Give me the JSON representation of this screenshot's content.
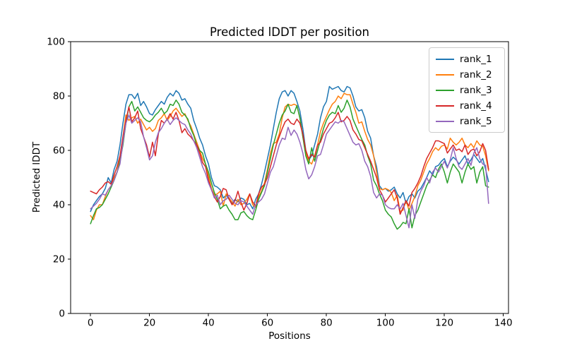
{
  "chart_data": {
    "type": "line",
    "title": "Predicted lDDT per position",
    "xlabel": "Positions",
    "ylabel": "Predicted lDDT",
    "xlim": [
      -6.75,
      141.75
    ],
    "ylim": [
      0,
      100
    ],
    "xticks": [
      0,
      20,
      40,
      60,
      80,
      100,
      120,
      140
    ],
    "yticks": [
      0,
      20,
      40,
      60,
      80,
      100
    ],
    "grid": false,
    "background": "#ffffff",
    "legend_position": "upper right",
    "x_start": 0,
    "x_step": 1,
    "series": [
      {
        "name": "rank_1",
        "color": "#1f77b4",
        "values": [
          37.5,
          40,
          41.5,
          43,
          44,
          46,
          50,
          48,
          53,
          56,
          62,
          70,
          77,
          80.5,
          80.5,
          79,
          81,
          76.5,
          78,
          76,
          73.5,
          73,
          75,
          76.5,
          78,
          77,
          79.5,
          81,
          80,
          82,
          81,
          78.5,
          79,
          77,
          75.5,
          71,
          68,
          64.5,
          62,
          58,
          55,
          50,
          47,
          46.5,
          45.5,
          42.5,
          43.5,
          42,
          40.5,
          42,
          41,
          42.5,
          42,
          40,
          40.5,
          38.5,
          42,
          44,
          47.5,
          52,
          57,
          62,
          68,
          74,
          79,
          81.5,
          82,
          80,
          82,
          81,
          78,
          74.5,
          68,
          60,
          56.5,
          58,
          62,
          66,
          72,
          76,
          78,
          83.5,
          82.5,
          83,
          83.5,
          82,
          81.5,
          83.5,
          83,
          80,
          76,
          74.5,
          75,
          72,
          67,
          64.5,
          58,
          54,
          47,
          45.5,
          46,
          45,
          45.5,
          46.5,
          44,
          42.5,
          44.5,
          40.5,
          43,
          44,
          42.5,
          45,
          46,
          48,
          50,
          52.5,
          51,
          54,
          54.5,
          56,
          57,
          54,
          56,
          57.5,
          56.5,
          55,
          56.5,
          58,
          55,
          56.5,
          58.5,
          57,
          55.5,
          57,
          53,
          48.5
        ]
      },
      {
        "name": "rank_2",
        "color": "#ff7f0e",
        "values": [
          36,
          34.5,
          38,
          40,
          40,
          43,
          45.5,
          47,
          50,
          52,
          57,
          65,
          73,
          71,
          72,
          72.5,
          70,
          71.5,
          69.5,
          67.5,
          68.5,
          67,
          68,
          71,
          72,
          73.5,
          71,
          72.5,
          74.5,
          75.5,
          74,
          72.5,
          73.5,
          71,
          69,
          66,
          63,
          60,
          57,
          55,
          50.5,
          46,
          43.5,
          44,
          45,
          39.5,
          44,
          42.5,
          41,
          39.5,
          42,
          40,
          40.5,
          42,
          44,
          40,
          39,
          43,
          45,
          48,
          53,
          59,
          62.5,
          63,
          66,
          72,
          76,
          77,
          76.5,
          77,
          76.5,
          72,
          65,
          59,
          56,
          55,
          58,
          62,
          67,
          70,
          72.5,
          75,
          77,
          78,
          80,
          79,
          81,
          80.5,
          80.5,
          77,
          74,
          70,
          70.5,
          67,
          64,
          62,
          58,
          52,
          46,
          45.5,
          46,
          45.5,
          44.5,
          41.5,
          43.5,
          37.5,
          38,
          41.5,
          38,
          40.5,
          43,
          47,
          49,
          52,
          55,
          57,
          59.5,
          61,
          60,
          61.5,
          62,
          60.5,
          64.5,
          63,
          62,
          63,
          64.5,
          62,
          61,
          62.5,
          61,
          63.5,
          62,
          61.5,
          58,
          52.5
        ]
      },
      {
        "name": "rank_3",
        "color": "#2ca02c",
        "values": [
          33,
          36,
          38.5,
          39,
          40,
          42,
          44,
          46.5,
          49,
          52,
          56,
          62,
          70,
          76,
          78,
          74.5,
          76,
          74,
          72,
          71,
          70.5,
          71.5,
          73,
          74,
          75.5,
          73.5,
          74.5,
          77,
          76.5,
          78.5,
          77,
          74,
          73,
          71.5,
          68,
          65.5,
          62,
          60,
          59,
          55,
          52,
          48,
          44.5,
          42,
          38.5,
          39.5,
          40,
          38,
          36.5,
          34.5,
          34.5,
          37,
          37.5,
          36,
          35,
          34.5,
          38,
          42,
          44.5,
          47,
          52,
          57,
          62,
          66,
          70,
          73,
          74.5,
          77,
          74,
          73.5,
          76.5,
          72,
          65,
          58,
          55,
          61,
          56,
          60,
          64,
          68,
          71,
          73,
          74,
          73.5,
          76.5,
          74,
          75.5,
          78.5,
          76,
          71.5,
          69,
          66.5,
          64,
          62,
          58,
          55,
          49,
          47,
          44,
          41.5,
          38,
          36.5,
          35.5,
          33,
          31,
          32,
          33.5,
          33,
          38.5,
          31.5,
          36,
          38,
          41,
          44,
          47,
          49,
          51,
          50,
          53,
          55,
          52,
          48,
          52,
          55,
          53.5,
          52,
          48,
          52,
          55,
          53,
          54,
          48,
          52,
          54,
          47,
          46.5
        ]
      },
      {
        "name": "rank_4",
        "color": "#d62728",
        "values": [
          45,
          44.5,
          44,
          45.5,
          46.5,
          48,
          48.5,
          47.5,
          51,
          54,
          58,
          65,
          71,
          76,
          70.5,
          72,
          74.5,
          68,
          65,
          62,
          57.5,
          63,
          58,
          66,
          71,
          70,
          71.5,
          73.5,
          71.5,
          74,
          71,
          66.5,
          68,
          66,
          65,
          63.5,
          62,
          59,
          55.5,
          54,
          49,
          45.5,
          43,
          41,
          43,
          46,
          45.5,
          42,
          40,
          41.5,
          45,
          41,
          38,
          40.5,
          44,
          41,
          39.5,
          44,
          46.5,
          47.5,
          50,
          54,
          58,
          62,
          65,
          68,
          70.5,
          71.5,
          70,
          69.5,
          71.5,
          70,
          66,
          60,
          57,
          58.5,
          57.5,
          62,
          63,
          66,
          68,
          70,
          70.5,
          72,
          74,
          70.5,
          71,
          72.5,
          71,
          67.5,
          66,
          64,
          63.5,
          61,
          58.5,
          56,
          53,
          50,
          45.5,
          43.5,
          41,
          42.5,
          44,
          45.5,
          42.5,
          36.5,
          39,
          41.5,
          39.5,
          44.5,
          46,
          48,
          50.5,
          54,
          57,
          59,
          61,
          63.5,
          63.5,
          63,
          62.5,
          59,
          60.5,
          62,
          60,
          60.5,
          59.5,
          62,
          58.5,
          60,
          60.5,
          58,
          59.5,
          62.5,
          60,
          53
        ]
      },
      {
        "name": "rank_5",
        "color": "#9467bd",
        "values": [
          38.5,
          39.5,
          40.5,
          42,
          44,
          43.5,
          45.5,
          47,
          49,
          52,
          55,
          63,
          70,
          73,
          70,
          71,
          72,
          70.5,
          65,
          61,
          56.5,
          58,
          63,
          66.5,
          68,
          70,
          71.5,
          69.5,
          71,
          72,
          71,
          70,
          69.5,
          67.5,
          66,
          63.5,
          61,
          57.5,
          54,
          51.5,
          48,
          45.5,
          42.5,
          43.5,
          40,
          41.5,
          42,
          43.5,
          42,
          40.5,
          40,
          41.5,
          41,
          39.5,
          38,
          36.5,
          40,
          41,
          42,
          44,
          48,
          52,
          54,
          58,
          62,
          64.5,
          64,
          68.5,
          65.5,
          67.5,
          66,
          63,
          59,
          53,
          49.5,
          51,
          54,
          58,
          58.5,
          62,
          66,
          67.5,
          69,
          70.5,
          70,
          71,
          70.5,
          68,
          65.5,
          63,
          62,
          62.5,
          60,
          56,
          54,
          50.5,
          44.5,
          42.5,
          44,
          43.5,
          40,
          39,
          38.5,
          38.5,
          40,
          38.5,
          40.5,
          36,
          31.5,
          40,
          35,
          42,
          45,
          47,
          50,
          48,
          52,
          53.5,
          52,
          54,
          56,
          53.5,
          56.5,
          61,
          57,
          54,
          53,
          55,
          57,
          54.5,
          59,
          61,
          57,
          55,
          54.5,
          40.5
        ]
      }
    ]
  }
}
